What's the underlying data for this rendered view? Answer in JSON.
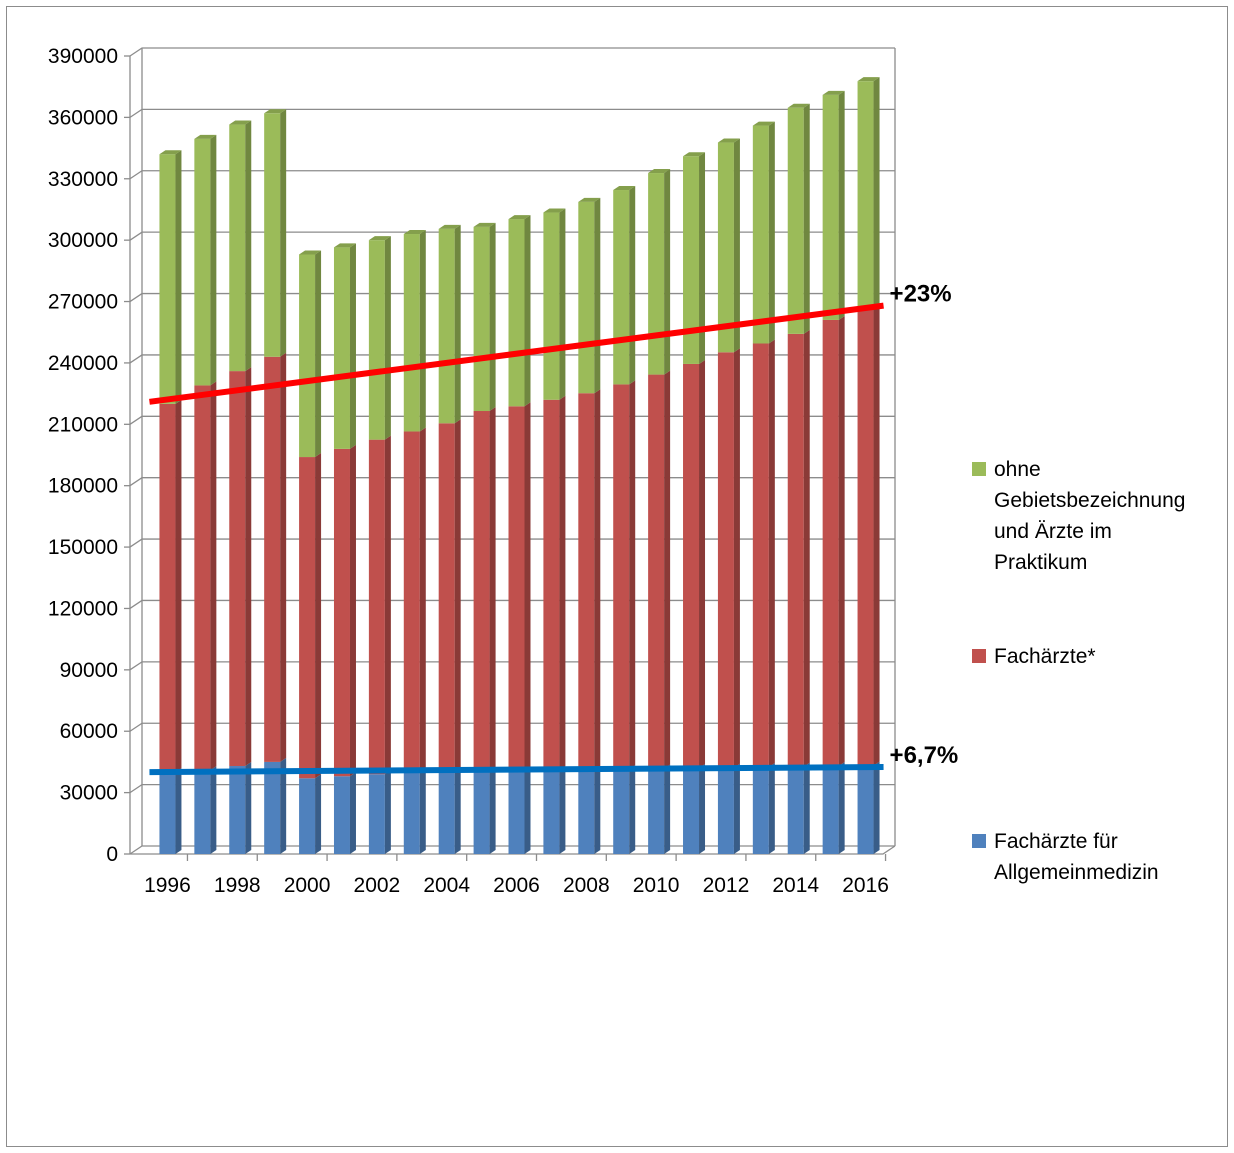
{
  "chart_data": {
    "type": "bar",
    "stacked": true,
    "categories": [
      "1996",
      "1997",
      "1998",
      "1999",
      "2000",
      "2001",
      "2002",
      "2003",
      "2004",
      "2005",
      "2006",
      "2007",
      "2008",
      "2009",
      "2010",
      "2011",
      "2012",
      "2013",
      "2014",
      "2015",
      "2016"
    ],
    "x_tick_labels": [
      "1996",
      "1998",
      "2000",
      "2002",
      "2004",
      "2006",
      "2008",
      "2010",
      "2012",
      "2014",
      "2016"
    ],
    "series": [
      {
        "name": "Fachärzte für Allgemeinmedizin",
        "color": "#4f81bd",
        "values": [
          40000,
          41000,
          43000,
          45000,
          37000,
          38000,
          39000,
          40000,
          40500,
          40500,
          40800,
          41000,
          41200,
          41500,
          41800,
          42000,
          42200,
          42500,
          42700,
          43000,
          43200
        ]
      },
      {
        "name": "Fachärzte*",
        "color": "#c0504d",
        "values": [
          180000,
          188000,
          193000,
          198000,
          157000,
          160000,
          163500,
          166500,
          170000,
          176000,
          178000,
          181000,
          184000,
          188000,
          192500,
          197500,
          203000,
          207000,
          211500,
          218000,
          223000
        ]
      },
      {
        "name": "ohne Gebietsbezeichnung und Ärzte im Praktikum",
        "color": "#9bbb59",
        "values": [
          122000,
          120500,
          120500,
          119000,
          99000,
          98500,
          97500,
          96500,
          95000,
          90000,
          91500,
          91500,
          93500,
          95000,
          98500,
          101500,
          102500,
          106500,
          110500,
          110000,
          111500
        ]
      }
    ],
    "trend_lines": [
      {
        "color": "#ff0000",
        "start": {
          "x": "1996",
          "y": 221000
        },
        "end": {
          "x": "2016",
          "y": 268000
        },
        "label": "+23%"
      },
      {
        "color": "#0070c0",
        "start": {
          "x": "1996",
          "y": 40000
        },
        "end": {
          "x": "2016",
          "y": 42500
        },
        "label": "+6,7%"
      }
    ],
    "ylim": [
      0,
      390000
    ],
    "y_ticks": [
      0,
      30000,
      60000,
      90000,
      120000,
      150000,
      180000,
      210000,
      240000,
      270000,
      300000,
      330000,
      360000,
      390000
    ],
    "y_tick_labels": [
      "0",
      "30000",
      "60000",
      "90000",
      "120000",
      "150000",
      "180000",
      "210000",
      "240000",
      "270000",
      "300000",
      "330000",
      "360000",
      "390000"
    ],
    "grid": "horizontal",
    "legend_position": "right",
    "legend": [
      {
        "series": 2,
        "lines": [
          "ohne",
          "Gebietsbezeichnung",
          "und Ärzte im",
          "Praktikum"
        ]
      },
      {
        "series": 1,
        "lines": [
          "Fachärzte*"
        ]
      },
      {
        "series": 0,
        "lines": [
          "Fachärzte für",
          "Allgemeinmedizin"
        ]
      }
    ],
    "title": "",
    "xlabel": "",
    "ylabel": ""
  }
}
